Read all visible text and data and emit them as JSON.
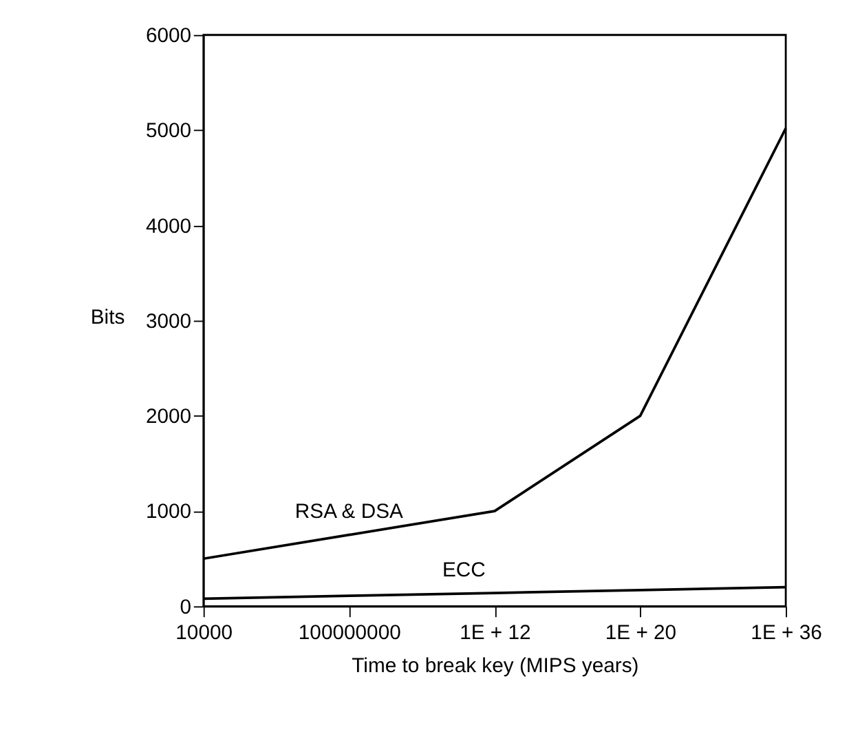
{
  "chart_data": {
    "type": "line",
    "xlabel": "Time to break key (MIPS years)",
    "ylabel": "Bits",
    "categories": [
      "10000",
      "100000000",
      "1E + 12",
      "1E + 20",
      "1E + 36"
    ],
    "series": [
      {
        "name": "RSA & DSA",
        "color": "#000000",
        "values": [
          500,
          750,
          1000,
          2000,
          5020
        ]
      },
      {
        "name": "ECC",
        "color": "#000000",
        "values": [
          80,
          110,
          140,
          170,
          200
        ]
      }
    ],
    "ylim": [
      0,
      6000
    ],
    "yticks": [
      0,
      1000,
      2000,
      3000,
      4000,
      5000,
      6000
    ],
    "grid": false,
    "legend": false,
    "marker": "none",
    "line_style": "solid"
  }
}
